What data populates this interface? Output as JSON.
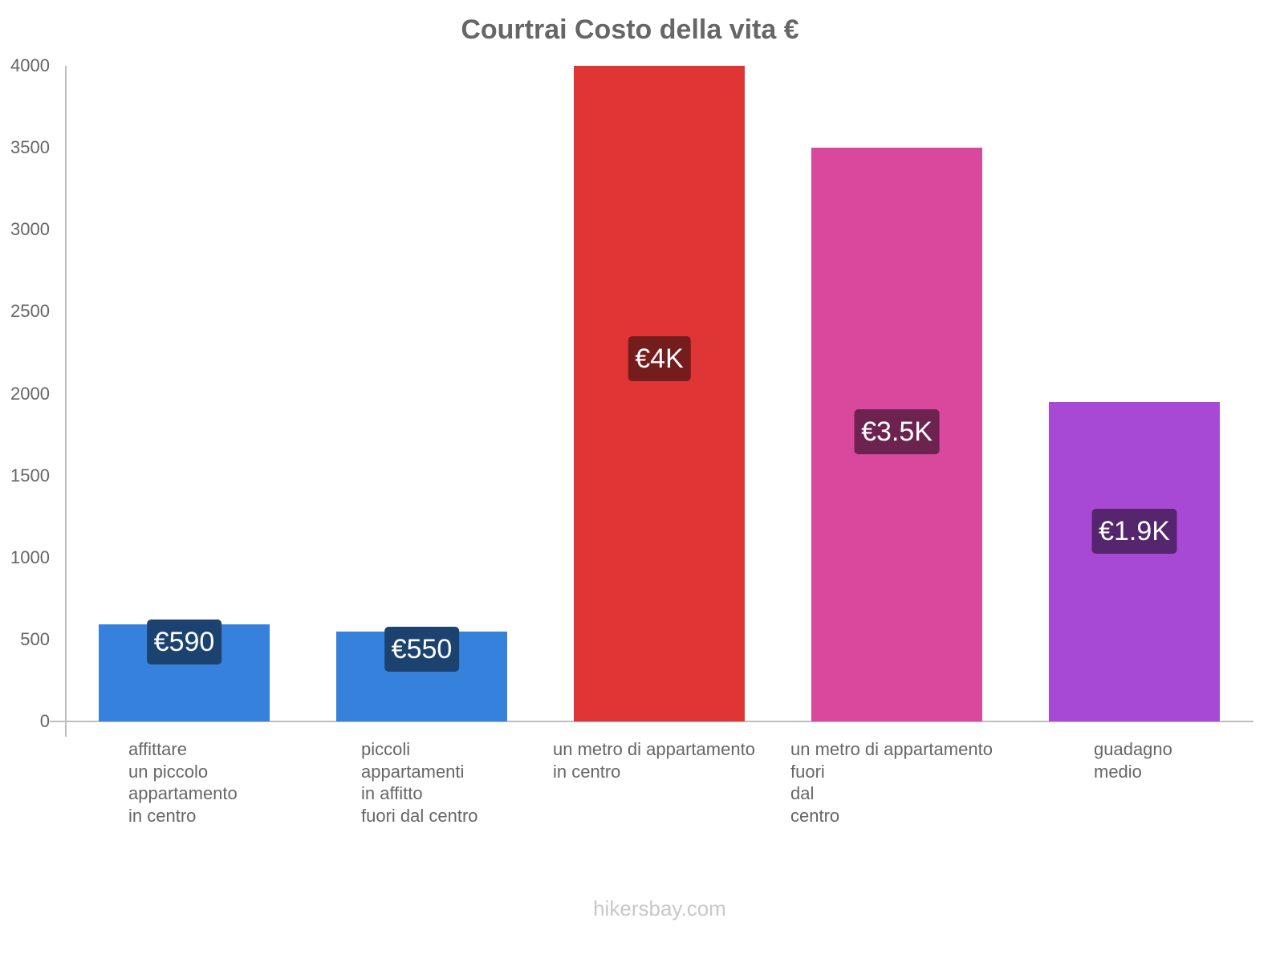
{
  "chart_data": {
    "type": "bar",
    "title": "Courtrai Costo della vita €",
    "xlabel": "",
    "ylabel": "",
    "ylim": [
      0,
      4000
    ],
    "yticks": [
      0,
      500,
      1000,
      1500,
      2000,
      2500,
      3000,
      3500,
      4000
    ],
    "grid": false,
    "legend": null,
    "categories": [
      "affittare un piccolo appartamento in centro",
      "piccoli appartamenti in affitto fuori dal centro",
      "un metro di appartamento in centro",
      "un metro di appartamento fuori dal centro",
      "guadagno medio"
    ],
    "values": [
      590,
      550,
      4000,
      3500,
      1950
    ],
    "data_labels": [
      "€590",
      "€550",
      "€4K",
      "€3.5K",
      "€1.9K"
    ],
    "colors": [
      "#3681dc",
      "#3681dc",
      "#e03535",
      "#d9489c",
      "#a849d6"
    ],
    "label_colors": [
      "#1c4370",
      "#1c4370",
      "#751c1c",
      "#6c2350",
      "#55256e"
    ]
  },
  "title": "Courtrai Costo della vita €",
  "yaxis": {
    "ticks": [
      "4000",
      "3500",
      "3000",
      "2500",
      "2000",
      "1500",
      "1000",
      "500",
      "0"
    ]
  },
  "categories_display": [
    "affittare\nun piccolo\nappartamento\nin centro",
    "piccoli\nappartamenti\nin affitto\nfuori dal centro",
    "un metro di appartamento\nin centro",
    "un metro di appartamento\nfuori\ndal\ncentro",
    "guadagno\nmedio"
  ],
  "footer": "hikersbay.com"
}
